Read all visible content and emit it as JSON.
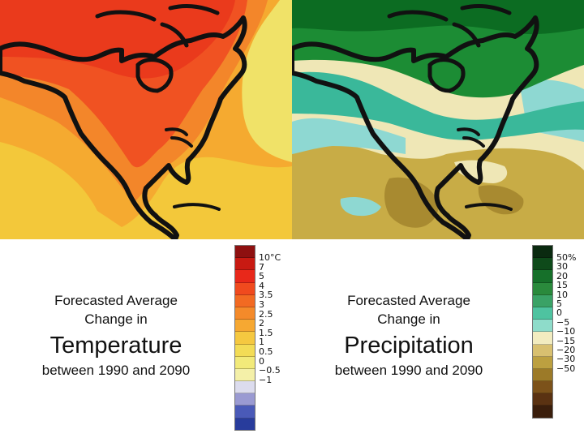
{
  "temperature": {
    "caption_line1": "Forecasted Average",
    "caption_line2": "Change in",
    "caption_title": "Temperature",
    "caption_range": "between 1990 and 2090",
    "legend_labels": [
      "10°C",
      "7",
      "5",
      "4",
      "3.5",
      "3",
      "2.5",
      "2",
      "1.5",
      "1",
      "0.5",
      "0",
      "−0.5",
      "−1"
    ],
    "legend_colors": [
      "#8e1010",
      "#c81a12",
      "#e8281a",
      "#f04a1e",
      "#f26a22",
      "#f48a2a",
      "#f6a832",
      "#f5c840",
      "#f3dc56",
      "#f2ea7a",
      "#f4f0a8",
      "#dcdcee",
      "#9a9ad2",
      "#4a5ab8",
      "#283c9c"
    ],
    "map_palette": {
      "deep": "#ea3a1c",
      "red": "#f05222",
      "orange": "#f3862a",
      "amber": "#f5aa30",
      "yellow": "#f3c83a",
      "pale": "#f0e268"
    }
  },
  "precipitation": {
    "caption_line1": "Forecasted Average",
    "caption_line2": "Change in",
    "caption_title": "Precipitation",
    "caption_range": "between 1990 and 2090",
    "legend_labels": [
      "50%",
      "30",
      "20",
      "15",
      "10",
      "5",
      "0",
      "−5",
      "−10",
      "−15",
      "−20",
      "−30",
      "−50"
    ],
    "legend_colors": [
      "#0a2a10",
      "#0e4a1a",
      "#16702a",
      "#2a8a3c",
      "#3aa266",
      "#4ec3a0",
      "#8edcca",
      "#f2ecc0",
      "#d8c070",
      "#bca040",
      "#9c7a28",
      "#7c521a",
      "#5a3212",
      "#3a1e0c"
    ],
    "map_palette": {
      "dark": "#0c6c22",
      "green": "#1c8c34",
      "teal": "#3ab89a",
      "aqua": "#8ed8d2",
      "cream": "#efe7b6",
      "olive": "#c8ac46",
      "brown": "#a88a30"
    }
  }
}
